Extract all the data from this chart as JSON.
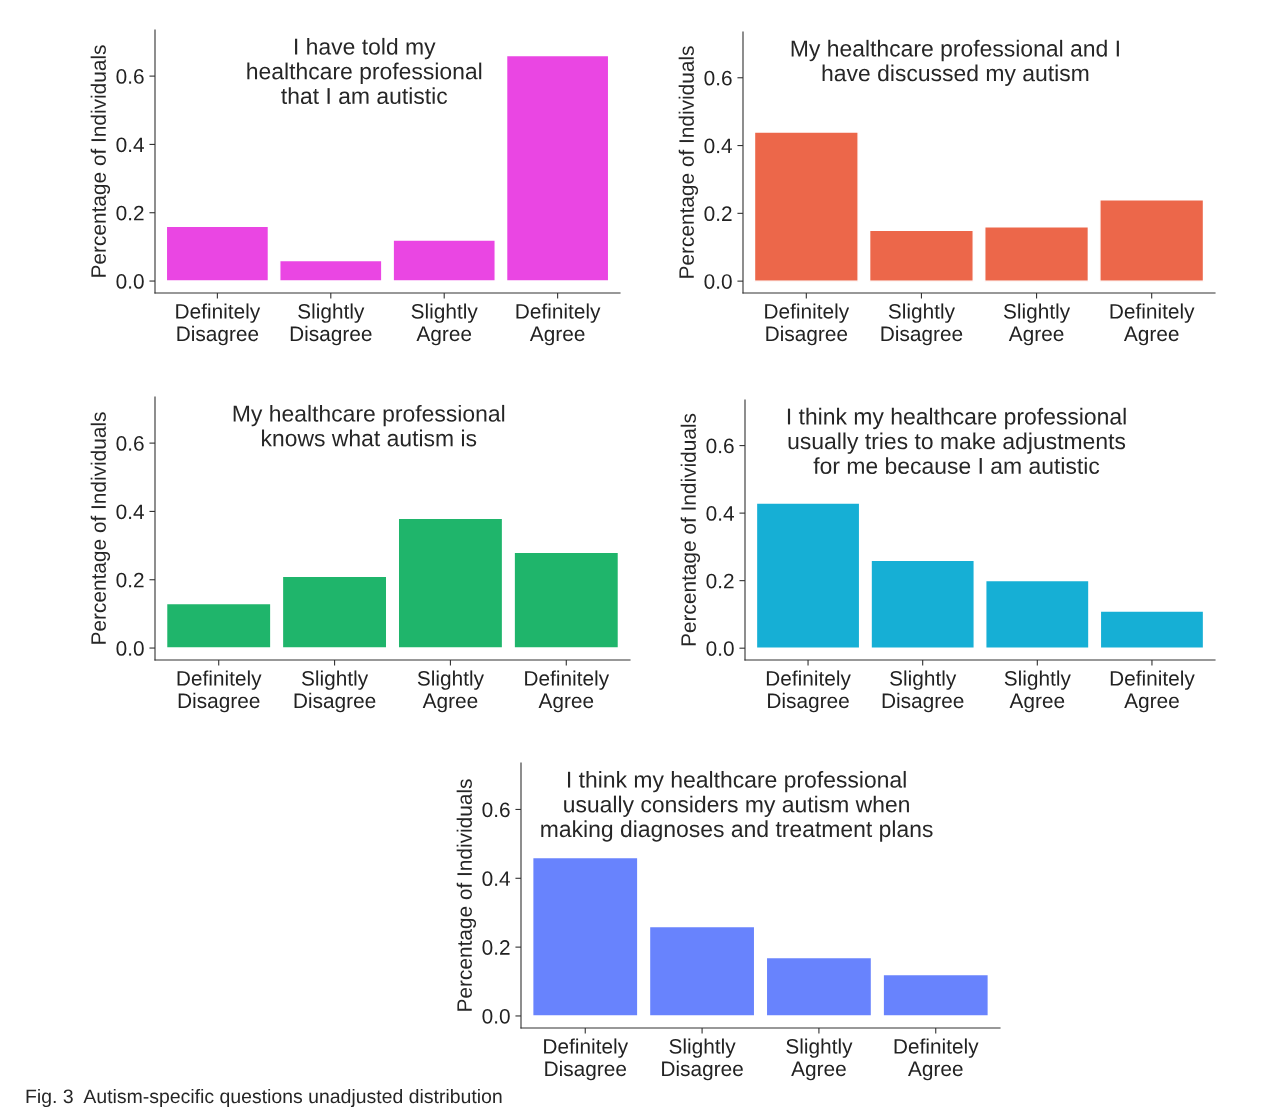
{
  "chart_data": [
    {
      "type": "bar",
      "title": "I have told my\nhealthcare professional\nthat I am autistic",
      "ylabel": "Percentage of Individuals",
      "categories": [
        "Definitely\nDisagree",
        "Slightly\nDisagree",
        "Slightly\nAgree",
        "Definitely\nAgree"
      ],
      "values": [
        0.16,
        0.06,
        0.12,
        0.66
      ],
      "color": "#ea46e3",
      "ylim": [
        -0.035,
        0.735
      ],
      "yticks": [
        {
          "value": 0,
          "label": "0.0"
        },
        {
          "value": 0.2,
          "label": "0.2"
        },
        {
          "value": 0.4,
          "label": "0.4"
        },
        {
          "value": 0.6,
          "label": "0.6"
        }
      ],
      "grid": false
    },
    {
      "type": "bar",
      "title": "My healthcare professional and I\nhave discussed my autism",
      "ylabel": "Percentage of Individuals",
      "categories": [
        "Definitely\nDisagree",
        "Slightly\nDisagree",
        "Slightly\nAgree",
        "Definitely\nAgree"
      ],
      "values": [
        0.44,
        0.15,
        0.16,
        0.24
      ],
      "color": "#ec674a",
      "ylim": [
        -0.035,
        0.735
      ],
      "yticks": [
        {
          "value": 0,
          "label": "0.0"
        },
        {
          "value": 0.2,
          "label": "0.2"
        },
        {
          "value": 0.4,
          "label": "0.4"
        },
        {
          "value": 0.6,
          "label": "0.6"
        }
      ],
      "grid": false
    },
    {
      "type": "bar",
      "title": "My healthcare professional\nknows what autism is",
      "ylabel": "Percentage of Individuals",
      "categories": [
        "Definitely\nDisagree",
        "Slightly\nDisagree",
        "Slightly\nAgree",
        "Definitely\nAgree"
      ],
      "values": [
        0.13,
        0.21,
        0.38,
        0.28
      ],
      "color": "#1fb56b",
      "ylim": [
        -0.035,
        0.735
      ],
      "yticks": [
        {
          "value": 0,
          "label": "0.0"
        },
        {
          "value": 0.2,
          "label": "0.2"
        },
        {
          "value": 0.4,
          "label": "0.4"
        },
        {
          "value": 0.6,
          "label": "0.6"
        }
      ],
      "grid": false
    },
    {
      "type": "bar",
      "title": "I think my healthcare professional\nusually tries to make adjustments\nfor me because I am autistic",
      "ylabel": "Percentage of Individuals",
      "categories": [
        "Definitely\nDisagree",
        "Slightly\nDisagree",
        "Slightly\nAgree",
        "Definitely\nAgree"
      ],
      "values": [
        0.43,
        0.26,
        0.2,
        0.11
      ],
      "color": "#16afd5",
      "ylim": [
        -0.035,
        0.735
      ],
      "yticks": [
        {
          "value": 0,
          "label": "0.0"
        },
        {
          "value": 0.2,
          "label": "0.2"
        },
        {
          "value": 0.4,
          "label": "0.4"
        },
        {
          "value": 0.6,
          "label": "0.6"
        }
      ],
      "grid": false
    },
    {
      "type": "bar",
      "title": "I think my healthcare professional\nusually considers my autism when\nmaking diagnoses and treatment plans",
      "ylabel": "Percentage of Individuals",
      "categories": [
        "Definitely\nDisagree",
        "Slightly\nDisagree",
        "Slightly\nAgree",
        "Definitely\nAgree"
      ],
      "values": [
        0.46,
        0.26,
        0.17,
        0.12
      ],
      "color": "#6883fd",
      "ylim": [
        -0.035,
        0.735
      ],
      "yticks": [
        {
          "value": 0,
          "label": "0.0"
        },
        {
          "value": 0.2,
          "label": "0.2"
        },
        {
          "value": 0.4,
          "label": "0.4"
        },
        {
          "value": 0.6,
          "label": "0.6"
        }
      ],
      "grid": false,
      "annotations": [
        "Fig. 3  Autism-specific questions unadjusted distribution"
      ]
    }
  ]
}
